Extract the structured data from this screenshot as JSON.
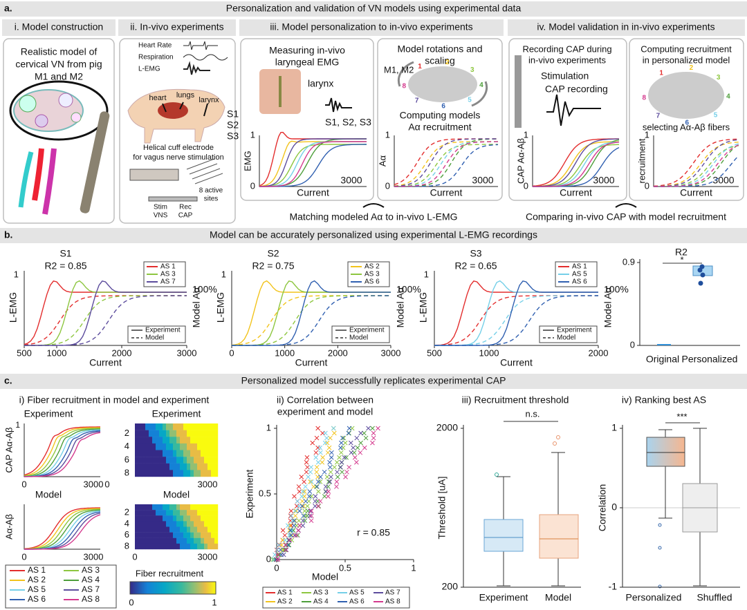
{
  "a": {
    "label": "a.",
    "title": "Personalization and validation of VN models using experimental data",
    "sections": [
      "i.   Model construction",
      "ii.   In-vivo experiments",
      "iii.   Model personalization to in-vivo experiments",
      "iv.   Model validation in in-vivo experiments"
    ],
    "i_text": [
      "Realistic model of",
      "cervical VN from pig",
      "M1 and M2"
    ],
    "ii": {
      "signals": [
        "Heart Rate",
        "Respiration",
        "L-EMG"
      ],
      "organs": [
        "heart",
        "lungs",
        "larynx"
      ],
      "subjects": [
        "S1",
        "S2",
        "S3"
      ],
      "cuff": [
        "Helical cuff electrode",
        "for vagus nerve stimulation"
      ],
      "sites": [
        "8 active",
        "sites"
      ],
      "stim": [
        "Stim",
        "VNS"
      ],
      "rec": [
        "Rec",
        "CAP"
      ]
    },
    "iii": {
      "emg_title": [
        "Measuring in-vivo",
        "laryngeal EMG"
      ],
      "larynx": "larynx",
      "subjects": "S1, S2, S3",
      "emg_ylabel": "EMG",
      "model_title": [
        "Model rotations and",
        "scaling"
      ],
      "models": "M1, M2",
      "model_sub": [
        "Computing models",
        "Aα recruitment"
      ],
      "model_ylabel": "Aα",
      "xlabel": "Current",
      "ytick_top": 1,
      "ytick_bottom": 0,
      "xtick": 3000,
      "nerve_numbers": [
        1,
        2,
        3,
        4,
        5,
        6,
        7,
        8
      ],
      "caption": "Matching modeled Aα to in-vivo L-EMG"
    },
    "iv": {
      "cap_title": [
        "Recording CAP during",
        "in-vivo experiments"
      ],
      "stim_labels": [
        "Stimulation",
        "CAP recording"
      ],
      "cap_ylabel": "CAP Aα-Aβ",
      "rec_title": [
        "Computing recruitment",
        "in personalized model"
      ],
      "rec_sub": "selecting Aα-Aβ fibers",
      "rec_ylabel": "recruitment",
      "xlabel": "Current",
      "ytick_top": 1,
      "ytick_bottom": 0,
      "xtick": 3000,
      "caption": "Comparing in-vivo CAP with model recruitment"
    }
  },
  "b": {
    "label": "b.",
    "title": "Model can be accurately personalized using experimental L-EMG recordings",
    "charts": [
      {
        "name": "S1",
        "r2": "R2 = 0.85",
        "ylabel": "L-EMG",
        "y2label": "Model Aα",
        "ytick": 1,
        "y2tick": "100%",
        "xlabel": "Current",
        "xticks": [
          500,
          1000,
          2000,
          3000
        ],
        "legend": [
          "AS 1",
          "AS 3",
          "AS 7"
        ],
        "colors": [
          "#e32d2d",
          "#8dc63f",
          "#5b4b9c"
        ],
        "styles": [
          "Experiment",
          "Model"
        ]
      },
      {
        "name": "S2",
        "r2": "R2 = 0.75",
        "ylabel": "L-EMG",
        "y2label": "Model Aα",
        "ytick": 1,
        "y2tick": "100%",
        "xlabel": "Current",
        "xticks": [
          0,
          1000,
          2000,
          3000
        ],
        "legend": [
          "AS 2",
          "AS 3",
          "AS 6"
        ],
        "colors": [
          "#f2c31b",
          "#8dc63f",
          "#2f5fb0"
        ],
        "styles": [
          "Experiment",
          "Model"
        ]
      },
      {
        "name": "S3",
        "r2": "R2 = 0.65",
        "ylabel": "L-EMG",
        "y2label": "Model Aα",
        "ytick": 1,
        "y2tick": "100%",
        "xlabel": "Current",
        "xticks": [
          500,
          1000,
          2000
        ],
        "legend": [
          "AS 1",
          "AS 5",
          "AS 6"
        ],
        "colors": [
          "#e32d2d",
          "#74cfe8",
          "#2f5fb0"
        ],
        "styles": [
          "Experiment",
          "Model"
        ]
      }
    ],
    "r2": {
      "title": "R2",
      "yticks": [
        0.9,
        0
      ],
      "categories": [
        "Original",
        "Personalized"
      ],
      "sig": "*"
    }
  },
  "c": {
    "label": "c.",
    "title": "Personalized model successfully replicates experimental CAP",
    "legend": [
      "AS 1",
      "AS 2",
      "AS 3",
      "AS 4",
      "AS 5",
      "AS 6",
      "AS 7",
      "AS 8"
    ],
    "colors": [
      "#e32d2d",
      "#f2c31b",
      "#8dc63f",
      "#4d9e3a",
      "#74cfe8",
      "#2f5fb0",
      "#5b4b9c",
      "#d4398d"
    ],
    "i": {
      "title": "i) Fiber recruitment in model and experiment",
      "rows": [
        "Experiment",
        "Model"
      ],
      "line_ylabels": [
        "CAP Aα-Aβ",
        "Aα-Aβ"
      ],
      "ytick": 1,
      "xticks": [
        0,
        3000
      ],
      "heat_yticks": [
        2,
        4,
        6,
        8
      ],
      "colorbar_label": "Fiber recruitment",
      "colorbar_ticks": [
        0,
        1
      ]
    },
    "ii": {
      "title": [
        "ii) Correlation between",
        "experiment and model"
      ],
      "ylabel": "Experiment",
      "xlabel": "Model",
      "ticks": [
        0,
        0.5,
        1
      ],
      "r": "r = 0.85"
    },
    "iii": {
      "title": "iii) Recruitment threshold",
      "ylabel": "Threshold [uA]",
      "yticks": [
        2000,
        200
      ],
      "sig": "n.s.",
      "categories": [
        "Experiment",
        "Model"
      ]
    },
    "iv": {
      "title": "iv) Ranking best AS",
      "ylabel": "Correlation",
      "yticks": [
        1,
        0,
        -1
      ],
      "sig": "***",
      "categories": [
        "Personalized",
        "Shuffled"
      ]
    }
  }
}
